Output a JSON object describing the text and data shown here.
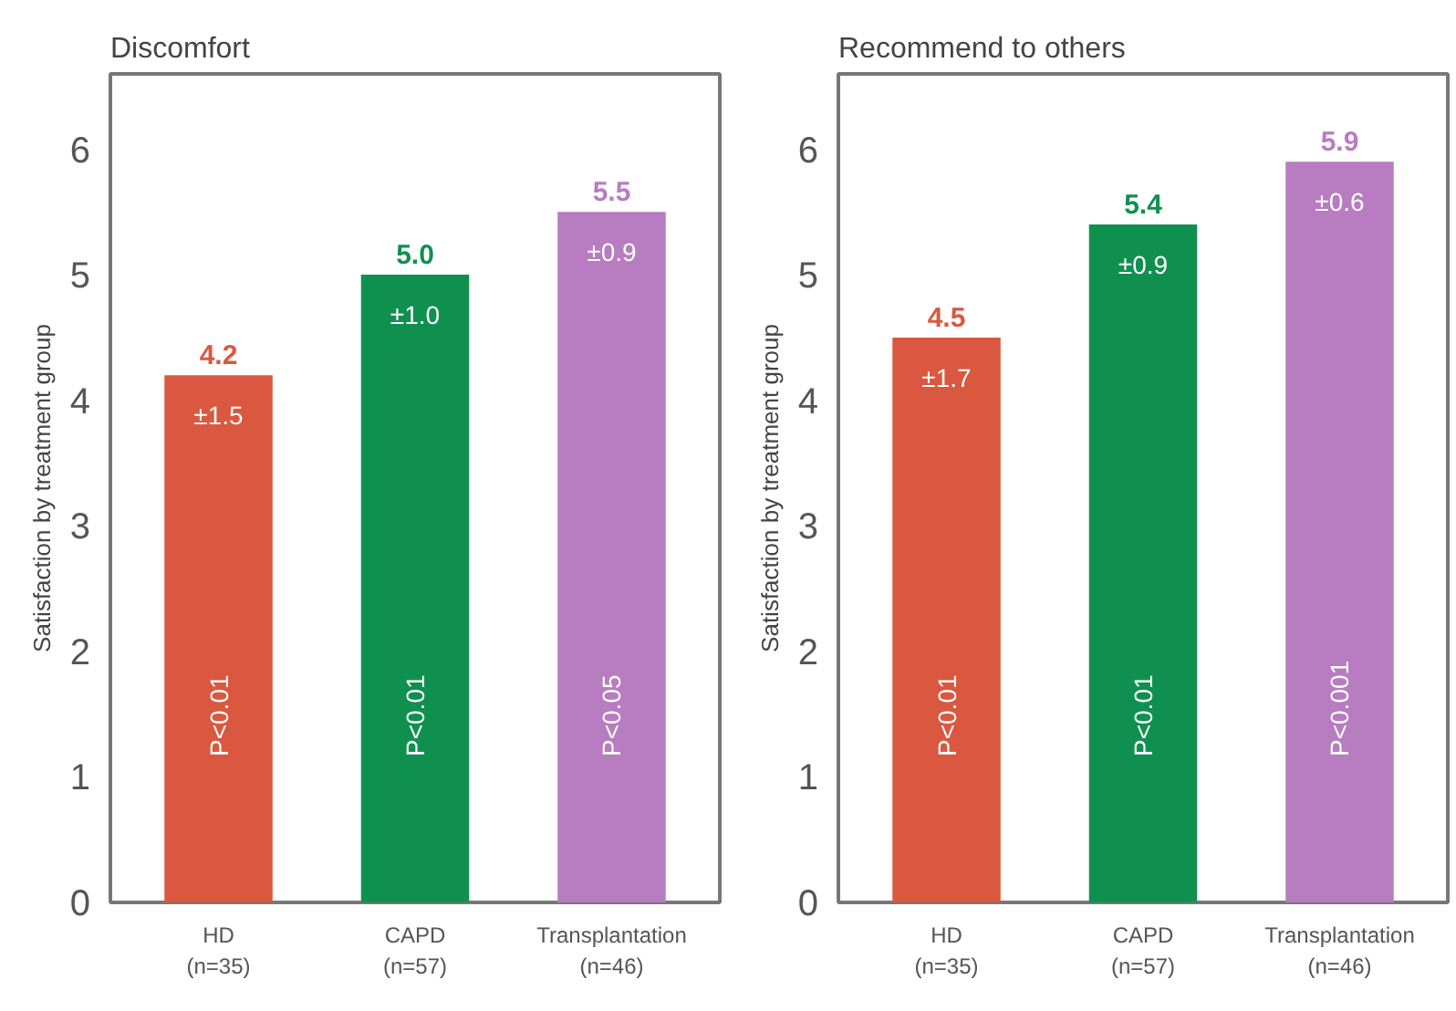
{
  "chart_data": [
    {
      "type": "bar",
      "title": "Discomfort",
      "ylabel": "Satisfaction by treatment group",
      "categories": [
        "HD\n(n=35)",
        "CAPD\n(n=57)",
        "Transplantation\n(n=46)"
      ],
      "values": [
        4.2,
        5.0,
        5.5
      ],
      "colors": [
        "#d9583f",
        "#10904f",
        "#b87cc1"
      ],
      "value_labels": [
        "4.2",
        "5.0",
        "5.5"
      ],
      "ylim": [
        0,
        6.6
      ],
      "yticks": [
        0,
        1,
        2,
        3,
        4,
        5,
        6
      ],
      "grid": false,
      "annotations": [
        "±1.5",
        "±1.0",
        "±0.9",
        "P<0.01",
        "P<0.01",
        "P<0.05"
      ]
    },
    {
      "type": "bar",
      "title": "Recommend to others",
      "ylabel": "Satisfaction by treatment group",
      "categories": [
        "HD\n(n=35)",
        "CAPD\n(n=57)",
        "Transplantation\n(n=46)"
      ],
      "values": [
        4.5,
        5.4,
        5.9
      ],
      "colors": [
        "#d9583f",
        "#10904f",
        "#b87cc1"
      ],
      "value_labels": [
        "4.5",
        "5.4",
        "5.9"
      ],
      "ylim": [
        0,
        6.6
      ],
      "yticks": [
        0,
        1,
        2,
        3,
        4,
        5,
        6
      ],
      "grid": false,
      "annotations": [
        "±1.7",
        "±0.9",
        "±0.6",
        "P<0.01",
        "P<0.01",
        "P<0.001"
      ]
    }
  ]
}
